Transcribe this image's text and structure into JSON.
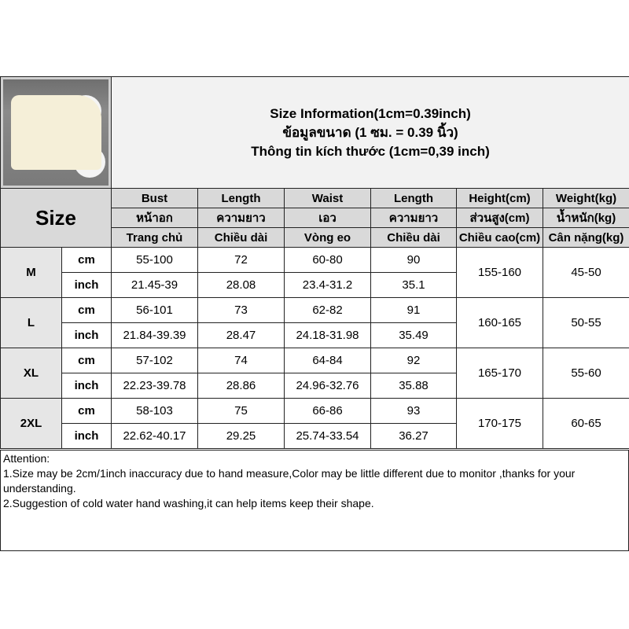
{
  "title": {
    "line1": "Size Information(1cm=0.39inch)",
    "line2": "ข้อมูลขนาด (1 ซม. = 0.39 นิ้ว)",
    "line3": "Thông tin kích thước (1cm=0,39 inch)"
  },
  "size_label": "Size",
  "columns": [
    {
      "en": "Bust",
      "th": "หน้าอก",
      "vi": "Trang chủ"
    },
    {
      "en": "Length",
      "th": "ความยาว",
      "vi": "Chiều dài"
    },
    {
      "en": "Waist",
      "th": "เอว",
      "vi": "Vòng eo"
    },
    {
      "en": "Length",
      "th": "ความยาว",
      "vi": "Chiều dài"
    },
    {
      "en": "Height(cm)",
      "th": "ส่วนสูง(cm)",
      "vi": "Chiều cao(cm)"
    },
    {
      "en": "Weight(kg)",
      "th": "น้ำหนัก(kg)",
      "vi": "Cân nặng(kg)"
    }
  ],
  "rows": [
    {
      "size": "M",
      "cm_label": "cm",
      "inch_label": "inch",
      "cm": [
        "55-100",
        "72",
        "60-80",
        "90"
      ],
      "inch": [
        "21.45-39",
        "28.08",
        "23.4-31.2",
        "35.1"
      ],
      "height": "155-160",
      "weight": "45-50"
    },
    {
      "size": "L",
      "cm_label": "cm",
      "inch_label": "inch",
      "cm": [
        "56-101",
        "73",
        "62-82",
        "91"
      ],
      "inch": [
        "21.84-39.39",
        "28.47",
        "24.18-31.98",
        "35.49"
      ],
      "height": "160-165",
      "weight": "50-55"
    },
    {
      "size": "XL",
      "cm_label": "cm",
      "inch_label": "inch",
      "cm": [
        "57-102",
        "74",
        "64-84",
        "92"
      ],
      "inch": [
        "22.23-39.78",
        "28.86",
        "24.96-32.76",
        "35.88"
      ],
      "height": "165-170",
      "weight": "55-60"
    },
    {
      "size": "2XL",
      "cm_label": "cm",
      "inch_label": "inch",
      "cm": [
        "58-103",
        "75",
        "66-86",
        "93"
      ],
      "inch": [
        "22.62-40.17",
        "29.25",
        "25.74-33.54",
        "36.27"
      ],
      "height": "170-175",
      "weight": "60-65"
    }
  ],
  "notes": {
    "heading": "Attention:",
    "line1": "1.Size may be 2cm/1inch inaccuracy due to hand measure,Color may be little different due to monitor ,thanks for your understanding.",
    "line2": "2.Suggestion of cold water hand washing,it can help items keep their shape."
  }
}
